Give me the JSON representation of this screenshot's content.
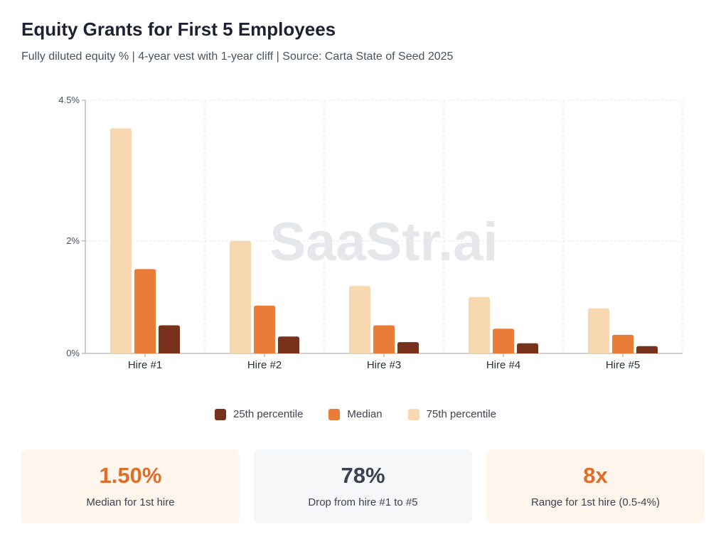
{
  "title": "Equity Grants for First 5 Employees",
  "subtitle": "Fully diluted equity % | 4-year vest with 1-year cliff | Source: Carta State of Seed 2025",
  "watermark": "SaaStr.ai",
  "chart_data": {
    "type": "bar",
    "categories": [
      "Hire #1",
      "Hire #2",
      "Hire #3",
      "Hire #4",
      "Hire #5"
    ],
    "series": [
      {
        "name": "75th percentile",
        "color": "#f8d8b0",
        "values": [
          4.0,
          2.0,
          1.2,
          1.0,
          0.8
        ]
      },
      {
        "name": "Median",
        "color": "#e97d38",
        "values": [
          1.5,
          0.85,
          0.5,
          0.44,
          0.33
        ]
      },
      {
        "name": "25th percentile",
        "color": "#78321c",
        "values": [
          0.5,
          0.3,
          0.2,
          0.18,
          0.13
        ]
      }
    ],
    "y_ticks": [
      {
        "value": 0,
        "label": "0%"
      },
      {
        "value": 2,
        "label": "2%"
      },
      {
        "value": 4.5,
        "label": "4.5%"
      }
    ],
    "ylim": [
      0,
      4.5
    ],
    "grid": true,
    "legend": {
      "position": "bottom",
      "order": [
        "25th percentile",
        "Median",
        "75th percentile"
      ]
    }
  },
  "stats": [
    {
      "value": "1.50%",
      "label": "Median for 1st hire",
      "color": "#e06e29",
      "bg": "#fef5ec"
    },
    {
      "value": "78%",
      "label": "Drop from hire #1 to #5",
      "color": "#3a4150",
      "bg": "#f6f7f8"
    },
    {
      "value": "8x",
      "label": "Range for 1st hire (0.5-4%)",
      "color": "#e06e29",
      "bg": "#fef5ec"
    }
  ]
}
